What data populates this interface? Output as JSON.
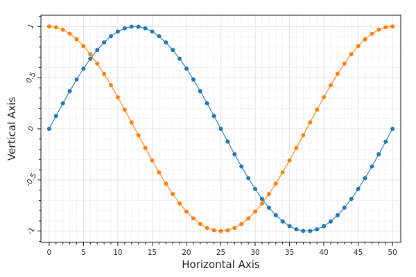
{
  "chart_data": {
    "type": "line",
    "xlabel": "Horizontal Axis",
    "ylabel": "Vertical Axis",
    "xlim": [
      -1.2,
      51.2
    ],
    "ylim": [
      -1.11,
      1.11
    ],
    "x_ticks": [
      0,
      5,
      10,
      15,
      20,
      25,
      30,
      35,
      40,
      45,
      50
    ],
    "x_tick_labels": [
      "0",
      "5",
      "10",
      "15",
      "20",
      "25",
      "30",
      "35",
      "40",
      "45",
      "50"
    ],
    "y_ticks": [
      1,
      0.5,
      0,
      -0.5,
      -1
    ],
    "y_tick_labels": [
      "1",
      "0.5",
      "0",
      "-0.5",
      "-1"
    ],
    "grid": true,
    "x": [
      0,
      1,
      2,
      3,
      4,
      5,
      6,
      7,
      8,
      9,
      10,
      11,
      12,
      13,
      14,
      15,
      16,
      17,
      18,
      19,
      20,
      21,
      22,
      23,
      24,
      25,
      26,
      27,
      28,
      29,
      30,
      31,
      32,
      33,
      34,
      35,
      36,
      37,
      38,
      39,
      40,
      41,
      42,
      43,
      44,
      45,
      46,
      47,
      48,
      49,
      50
    ],
    "series": [
      {
        "color": "#1f77b4",
        "values": [
          0.0,
          0.125,
          0.249,
          0.368,
          0.482,
          0.588,
          0.685,
          0.771,
          0.844,
          0.905,
          0.951,
          0.982,
          0.998,
          0.998,
          0.982,
          0.951,
          0.905,
          0.844,
          0.771,
          0.685,
          0.588,
          0.482,
          0.368,
          0.249,
          0.125,
          0.0,
          -0.125,
          -0.249,
          -0.368,
          -0.482,
          -0.588,
          -0.685,
          -0.771,
          -0.844,
          -0.905,
          -0.951,
          -0.982,
          -0.998,
          -0.998,
          -0.982,
          -0.951,
          -0.905,
          -0.844,
          -0.771,
          -0.685,
          -0.588,
          -0.482,
          -0.368,
          -0.249,
          -0.125,
          0.0
        ]
      },
      {
        "color": "#ff7f0e",
        "values": [
          1.0,
          0.992,
          0.969,
          0.93,
          0.876,
          0.809,
          0.729,
          0.637,
          0.536,
          0.426,
          0.309,
          0.187,
          0.063,
          -0.063,
          -0.187,
          -0.309,
          -0.426,
          -0.536,
          -0.637,
          -0.729,
          -0.809,
          -0.876,
          -0.93,
          -0.969,
          -0.992,
          -1.0,
          -0.992,
          -0.969,
          -0.93,
          -0.876,
          -0.809,
          -0.729,
          -0.637,
          -0.536,
          -0.426,
          -0.309,
          -0.187,
          -0.063,
          0.063,
          0.187,
          0.309,
          0.426,
          0.536,
          0.637,
          0.729,
          0.809,
          0.876,
          0.93,
          0.969,
          0.992,
          1.0
        ]
      }
    ]
  }
}
